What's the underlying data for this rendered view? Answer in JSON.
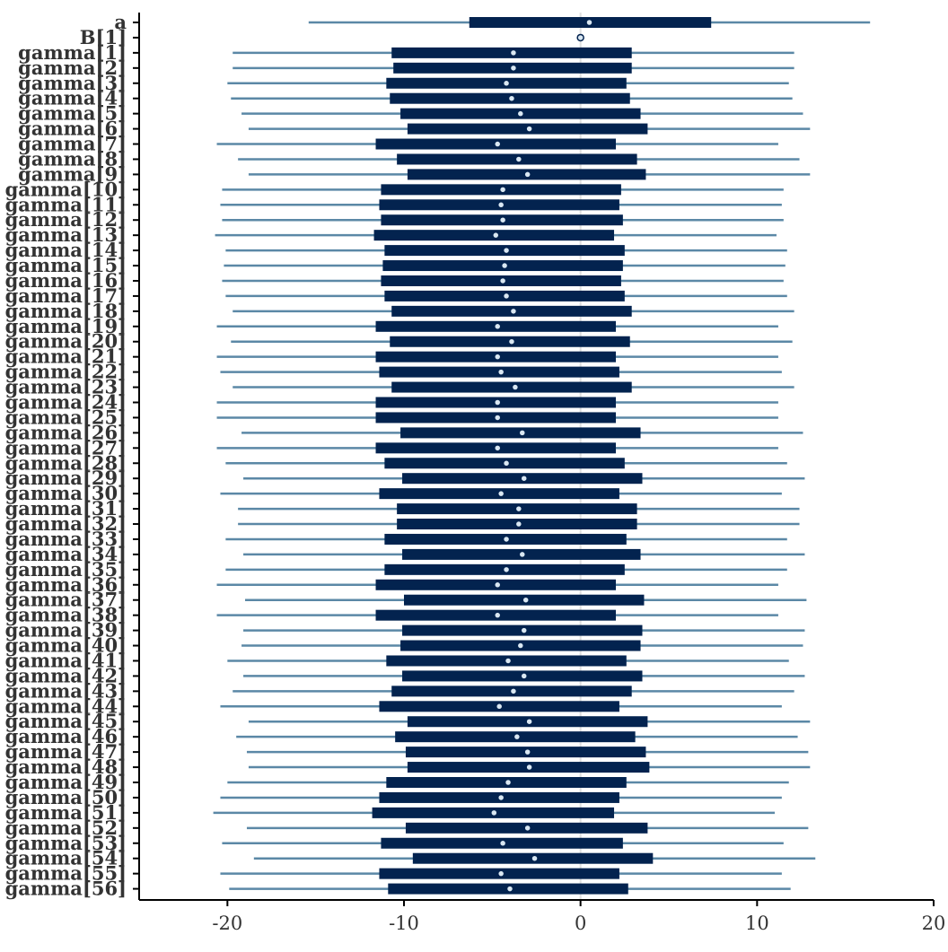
{
  "colors": {
    "background": "#ffffff",
    "axis": "#000000",
    "text": "#333333",
    "outer_interval": "#5b88a6",
    "inner_interval": "#03234f",
    "point_fill": "#d9e7f2",
    "point_stroke": "#03234f",
    "zero_line": "#e0e0e0"
  },
  "chart_data": {
    "type": "interval",
    "xlim": [
      -25,
      20
    ],
    "x_ticks": [
      -20,
      -10,
      0,
      10,
      20
    ],
    "x_tick_labels": [
      "-20",
      "-10",
      "0",
      "10",
      "20"
    ],
    "reference_line": 0,
    "grid": false,
    "title": "",
    "xlabel": "",
    "ylabel": "",
    "parameters": [
      {
        "label": "a",
        "outer": [
          -15.4,
          16.4
        ],
        "inner": [
          -6.3,
          7.4
        ],
        "point": 0.5
      },
      {
        "label": "B[1]",
        "outer": [
          0,
          0
        ],
        "inner": [
          0,
          0
        ],
        "point": 0.0
      },
      {
        "label": "gamma[1]",
        "outer": [
          -19.7,
          12.1
        ],
        "inner": [
          -10.7,
          2.9
        ],
        "point": -3.8
      },
      {
        "label": "gamma[2]",
        "outer": [
          -19.7,
          12.1
        ],
        "inner": [
          -10.6,
          2.9
        ],
        "point": -3.8
      },
      {
        "label": "gamma[3]",
        "outer": [
          -20.0,
          11.8
        ],
        "inner": [
          -11.0,
          2.6
        ],
        "point": -4.2
      },
      {
        "label": "gamma[4]",
        "outer": [
          -19.8,
          12.0
        ],
        "inner": [
          -10.8,
          2.8
        ],
        "point": -3.9
      },
      {
        "label": "gamma[5]",
        "outer": [
          -19.2,
          12.6
        ],
        "inner": [
          -10.2,
          3.4
        ],
        "point": -3.4
      },
      {
        "label": "gamma[6]",
        "outer": [
          -18.8,
          13.0
        ],
        "inner": [
          -9.8,
          3.8
        ],
        "point": -2.9
      },
      {
        "label": "gamma[7]",
        "outer": [
          -20.6,
          11.2
        ],
        "inner": [
          -11.6,
          2.0
        ],
        "point": -4.7
      },
      {
        "label": "gamma[8]",
        "outer": [
          -19.4,
          12.4
        ],
        "inner": [
          -10.4,
          3.2
        ],
        "point": -3.5
      },
      {
        "label": "gamma[9]",
        "outer": [
          -18.8,
          13.0
        ],
        "inner": [
          -9.8,
          3.7
        ],
        "point": -3.0
      },
      {
        "label": "gamma[10]",
        "outer": [
          -20.3,
          11.5
        ],
        "inner": [
          -11.3,
          2.3
        ],
        "point": -4.4
      },
      {
        "label": "gamma[11]",
        "outer": [
          -20.4,
          11.4
        ],
        "inner": [
          -11.4,
          2.2
        ],
        "point": -4.5
      },
      {
        "label": "gamma[12]",
        "outer": [
          -20.3,
          11.5
        ],
        "inner": [
          -11.3,
          2.4
        ],
        "point": -4.4
      },
      {
        "label": "gamma[13]",
        "outer": [
          -20.7,
          11.1
        ],
        "inner": [
          -11.7,
          1.9
        ],
        "point": -4.8
      },
      {
        "label": "gamma[14]",
        "outer": [
          -20.1,
          11.7
        ],
        "inner": [
          -11.1,
          2.5
        ],
        "point": -4.2
      },
      {
        "label": "gamma[15]",
        "outer": [
          -20.2,
          11.6
        ],
        "inner": [
          -11.2,
          2.4
        ],
        "point": -4.3
      },
      {
        "label": "gamma[16]",
        "outer": [
          -20.3,
          11.5
        ],
        "inner": [
          -11.3,
          2.3
        ],
        "point": -4.4
      },
      {
        "label": "gamma[17]",
        "outer": [
          -20.1,
          11.7
        ],
        "inner": [
          -11.1,
          2.5
        ],
        "point": -4.2
      },
      {
        "label": "gamma[18]",
        "outer": [
          -19.7,
          12.1
        ],
        "inner": [
          -10.7,
          2.9
        ],
        "point": -3.8
      },
      {
        "label": "gamma[19]",
        "outer": [
          -20.6,
          11.2
        ],
        "inner": [
          -11.6,
          2.0
        ],
        "point": -4.7
      },
      {
        "label": "gamma[20]",
        "outer": [
          -19.8,
          12.0
        ],
        "inner": [
          -10.8,
          2.8
        ],
        "point": -3.9
      },
      {
        "label": "gamma[21]",
        "outer": [
          -20.6,
          11.2
        ],
        "inner": [
          -11.6,
          2.0
        ],
        "point": -4.7
      },
      {
        "label": "gamma[22]",
        "outer": [
          -20.4,
          11.4
        ],
        "inner": [
          -11.4,
          2.2
        ],
        "point": -4.5
      },
      {
        "label": "gamma[23]",
        "outer": [
          -19.7,
          12.1
        ],
        "inner": [
          -10.7,
          2.9
        ],
        "point": -3.7
      },
      {
        "label": "gamma[24]",
        "outer": [
          -20.6,
          11.2
        ],
        "inner": [
          -11.6,
          2.0
        ],
        "point": -4.7
      },
      {
        "label": "gamma[25]",
        "outer": [
          -20.6,
          11.2
        ],
        "inner": [
          -11.6,
          2.0
        ],
        "point": -4.7
      },
      {
        "label": "gamma[26]",
        "outer": [
          -19.2,
          12.6
        ],
        "inner": [
          -10.2,
          3.4
        ],
        "point": -3.3
      },
      {
        "label": "gamma[27]",
        "outer": [
          -20.6,
          11.2
        ],
        "inner": [
          -11.6,
          2.0
        ],
        "point": -4.7
      },
      {
        "label": "gamma[28]",
        "outer": [
          -20.1,
          11.7
        ],
        "inner": [
          -11.1,
          2.5
        ],
        "point": -4.2
      },
      {
        "label": "gamma[29]",
        "outer": [
          -19.1,
          12.7
        ],
        "inner": [
          -10.1,
          3.5
        ],
        "point": -3.2
      },
      {
        "label": "gamma[30]",
        "outer": [
          -20.4,
          11.4
        ],
        "inner": [
          -11.4,
          2.2
        ],
        "point": -4.5
      },
      {
        "label": "gamma[31]",
        "outer": [
          -19.4,
          12.4
        ],
        "inner": [
          -10.4,
          3.2
        ],
        "point": -3.5
      },
      {
        "label": "gamma[32]",
        "outer": [
          -19.4,
          12.4
        ],
        "inner": [
          -10.4,
          3.2
        ],
        "point": -3.5
      },
      {
        "label": "gamma[33]",
        "outer": [
          -20.1,
          11.7
        ],
        "inner": [
          -11.1,
          2.6
        ],
        "point": -4.2
      },
      {
        "label": "gamma[34]",
        "outer": [
          -19.1,
          12.7
        ],
        "inner": [
          -10.1,
          3.4
        ],
        "point": -3.3
      },
      {
        "label": "gamma[35]",
        "outer": [
          -20.1,
          11.7
        ],
        "inner": [
          -11.1,
          2.5
        ],
        "point": -4.2
      },
      {
        "label": "gamma[36]",
        "outer": [
          -20.6,
          11.2
        ],
        "inner": [
          -11.6,
          2.0
        ],
        "point": -4.7
      },
      {
        "label": "gamma[37]",
        "outer": [
          -19.0,
          12.8
        ],
        "inner": [
          -10.0,
          3.6
        ],
        "point": -3.1
      },
      {
        "label": "gamma[38]",
        "outer": [
          -20.6,
          11.2
        ],
        "inner": [
          -11.6,
          2.0
        ],
        "point": -4.7
      },
      {
        "label": "gamma[39]",
        "outer": [
          -19.1,
          12.7
        ],
        "inner": [
          -10.1,
          3.5
        ],
        "point": -3.2
      },
      {
        "label": "gamma[40]",
        "outer": [
          -19.2,
          12.6
        ],
        "inner": [
          -10.2,
          3.4
        ],
        "point": -3.4
      },
      {
        "label": "gamma[41]",
        "outer": [
          -20.0,
          11.8
        ],
        "inner": [
          -11.0,
          2.6
        ],
        "point": -4.1
      },
      {
        "label": "gamma[42]",
        "outer": [
          -19.1,
          12.7
        ],
        "inner": [
          -10.1,
          3.5
        ],
        "point": -3.2
      },
      {
        "label": "gamma[43]",
        "outer": [
          -19.7,
          12.1
        ],
        "inner": [
          -10.7,
          2.9
        ],
        "point": -3.8
      },
      {
        "label": "gamma[44]",
        "outer": [
          -20.4,
          11.4
        ],
        "inner": [
          -11.4,
          2.2
        ],
        "point": -4.6
      },
      {
        "label": "gamma[45]",
        "outer": [
          -18.8,
          13.0
        ],
        "inner": [
          -9.8,
          3.8
        ],
        "point": -2.9
      },
      {
        "label": "gamma[46]",
        "outer": [
          -19.5,
          12.3
        ],
        "inner": [
          -10.5,
          3.1
        ],
        "point": -3.6
      },
      {
        "label": "gamma[47]",
        "outer": [
          -18.9,
          12.9
        ],
        "inner": [
          -9.9,
          3.7
        ],
        "point": -3.0
      },
      {
        "label": "gamma[48]",
        "outer": [
          -18.8,
          13.0
        ],
        "inner": [
          -9.8,
          3.9
        ],
        "point": -2.9
      },
      {
        "label": "gamma[49]",
        "outer": [
          -20.0,
          11.8
        ],
        "inner": [
          -11.0,
          2.6
        ],
        "point": -4.1
      },
      {
        "label": "gamma[50]",
        "outer": [
          -20.4,
          11.4
        ],
        "inner": [
          -11.4,
          2.2
        ],
        "point": -4.5
      },
      {
        "label": "gamma[51]",
        "outer": [
          -20.8,
          11.0
        ],
        "inner": [
          -11.8,
          1.9
        ],
        "point": -4.9
      },
      {
        "label": "gamma[52]",
        "outer": [
          -18.9,
          12.9
        ],
        "inner": [
          -9.9,
          3.8
        ],
        "point": -3.0
      },
      {
        "label": "gamma[53]",
        "outer": [
          -20.3,
          11.5
        ],
        "inner": [
          -11.3,
          2.4
        ],
        "point": -4.4
      },
      {
        "label": "gamma[54]",
        "outer": [
          -18.5,
          13.3
        ],
        "inner": [
          -9.5,
          4.1
        ],
        "point": -2.6
      },
      {
        "label": "gamma[55]",
        "outer": [
          -20.4,
          11.4
        ],
        "inner": [
          -11.4,
          2.2
        ],
        "point": -4.5
      },
      {
        "label": "gamma[56]",
        "outer": [
          -19.9,
          11.9
        ],
        "inner": [
          -10.9,
          2.7
        ],
        "point": -4.0
      }
    ]
  }
}
